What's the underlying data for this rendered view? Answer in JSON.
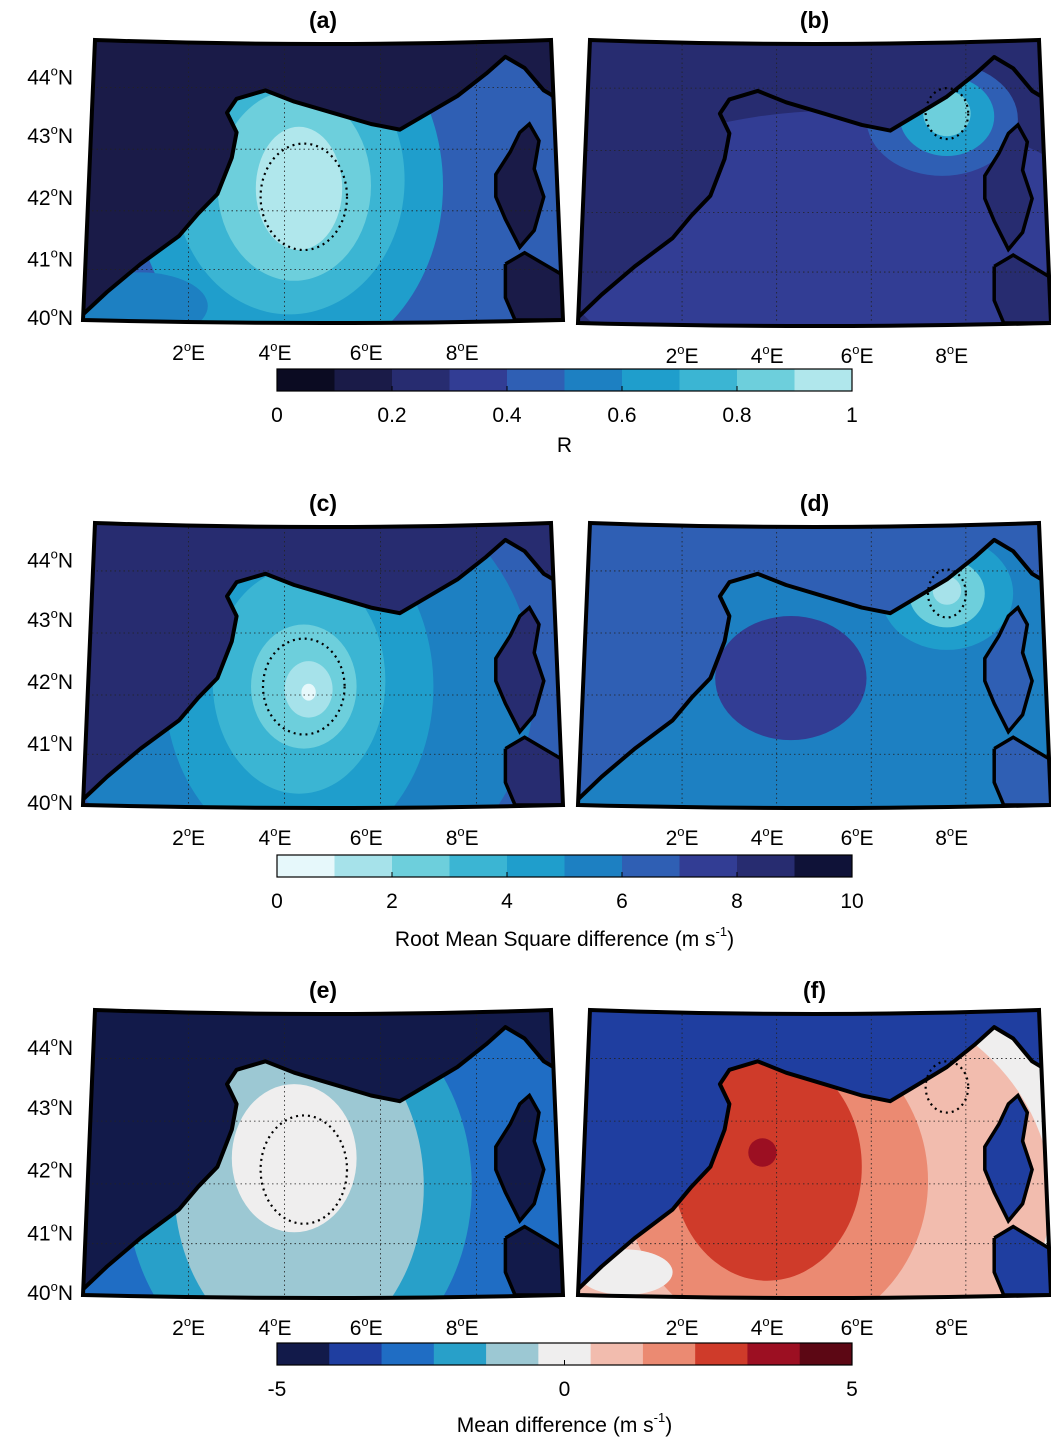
{
  "panels": [
    {
      "id": "a",
      "title": "(a)",
      "palette": "R",
      "style": "a"
    },
    {
      "id": "b",
      "title": "(b)",
      "palette": "R",
      "style": "b"
    },
    {
      "id": "c",
      "title": "(c)",
      "palette": "RMS",
      "style": "c"
    },
    {
      "id": "d",
      "title": "(d)",
      "palette": "RMS",
      "style": "d"
    },
    {
      "id": "e",
      "title": "(e)",
      "palette": "MD",
      "style": "e"
    },
    {
      "id": "f",
      "title": "(f)",
      "palette": "MD",
      "style": "f"
    }
  ],
  "lat_labels": [
    {
      "deg": "44",
      "suffix": "N"
    },
    {
      "deg": "43",
      "suffix": "N"
    },
    {
      "deg": "42",
      "suffix": "N"
    },
    {
      "deg": "41",
      "suffix": "N"
    },
    {
      "deg": "40",
      "suffix": "N"
    }
  ],
  "lon_labels": [
    {
      "deg": "2",
      "suffix": "E"
    },
    {
      "deg": "4",
      "suffix": "E"
    },
    {
      "deg": "6",
      "suffix": "E"
    },
    {
      "deg": "8",
      "suffix": "E"
    }
  ],
  "degree_symbol": "o",
  "colorbars": [
    {
      "id": "R",
      "label": "R",
      "label_sup": "",
      "label_suffix": "",
      "ticks": [
        "0",
        "0.2",
        "0.4",
        "0.6",
        "0.8",
        "1"
      ],
      "colors": [
        "#0b0b22",
        "#1a1b48",
        "#272c70",
        "#323d94",
        "#2f5fb4",
        "#1d80c2",
        "#1f9ecc",
        "#3bb5d3",
        "#6dcfdc",
        "#b0e7ec"
      ]
    },
    {
      "id": "RMS",
      "label": "Root Mean Square difference (m s",
      "label_sup": "-1",
      "label_suffix": ")",
      "ticks": [
        "0",
        "2",
        "4",
        "6",
        "8",
        "10"
      ],
      "colors": [
        "#e6f8fb",
        "#a6e2ea",
        "#6dcfdc",
        "#3bb5d3",
        "#1f9ecc",
        "#1d80c2",
        "#2f5fb4",
        "#323d94",
        "#272c70",
        "#0f1238"
      ]
    },
    {
      "id": "MD",
      "label": "Mean difference (m s",
      "label_sup": "-1",
      "label_suffix": ")",
      "ticks": [
        "-5",
        "0",
        "5"
      ],
      "colors": [
        "#121a4a",
        "#1f3ea0",
        "#1f6dc4",
        "#28a0c9",
        "#9cc8d3",
        "#efeeee",
        "#f2bcae",
        "#eb8a72",
        "#cf3b2a",
        "#9c0f22",
        "#5c0714"
      ],
      "tick_positions": [
        0,
        0.5,
        1
      ]
    }
  ],
  "palette_colors": {
    "R": [
      "#0b0b22",
      "#1a1b48",
      "#272c70",
      "#323d94",
      "#2f5fb4",
      "#1d80c2",
      "#1f9ecc",
      "#3bb5d3",
      "#6dcfdc",
      "#b0e7ec"
    ],
    "RMS": [
      "#e6f8fb",
      "#a6e2ea",
      "#6dcfdc",
      "#3bb5d3",
      "#1f9ecc",
      "#1d80c2",
      "#2f5fb4",
      "#323d94",
      "#272c70",
      "#0f1238"
    ],
    "MD": [
      "#121a4a",
      "#1f3ea0",
      "#1f6dc4",
      "#28a0c9",
      "#9cc8d3",
      "#efeeee",
      "#f2bcae",
      "#eb8a72",
      "#cf3b2a",
      "#9c0f22",
      "#5c0714"
    ]
  }
}
